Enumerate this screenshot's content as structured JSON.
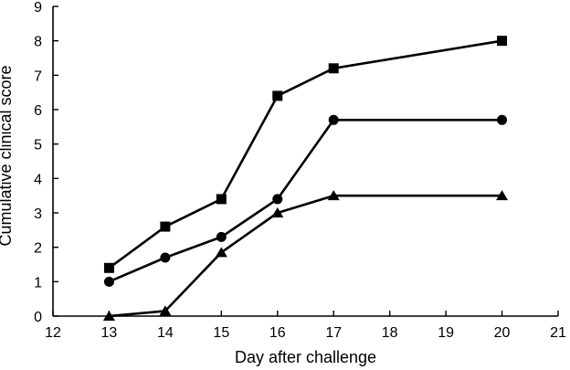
{
  "chart_data": {
    "type": "line",
    "title": "",
    "xlabel": "Day after challenge",
    "ylabel": "Cumulative clinical score",
    "xlim": [
      12,
      21
    ],
    "ylim": [
      0,
      9
    ],
    "x_ticks": [
      12,
      13,
      14,
      15,
      16,
      17,
      18,
      19,
      20,
      21
    ],
    "y_ticks": [
      0,
      1,
      2,
      3,
      4,
      5,
      6,
      7,
      8,
      9
    ],
    "grid": false,
    "legend": "none",
    "series": [
      {
        "marker": "square",
        "color": "#000000",
        "x": [
          13,
          14,
          15,
          16,
          17,
          20
        ],
        "y": [
          1.4,
          2.6,
          3.4,
          6.4,
          7.2,
          8.0
        ]
      },
      {
        "marker": "circle",
        "color": "#000000",
        "x": [
          13,
          14,
          15,
          16,
          17,
          20
        ],
        "y": [
          1.0,
          1.7,
          2.3,
          3.4,
          5.7,
          5.7
        ]
      },
      {
        "marker": "triangle",
        "color": "#000000",
        "x": [
          13,
          14,
          15,
          16,
          17,
          20
        ],
        "y": [
          0.0,
          0.15,
          1.85,
          3.0,
          3.5,
          3.5
        ]
      }
    ]
  }
}
